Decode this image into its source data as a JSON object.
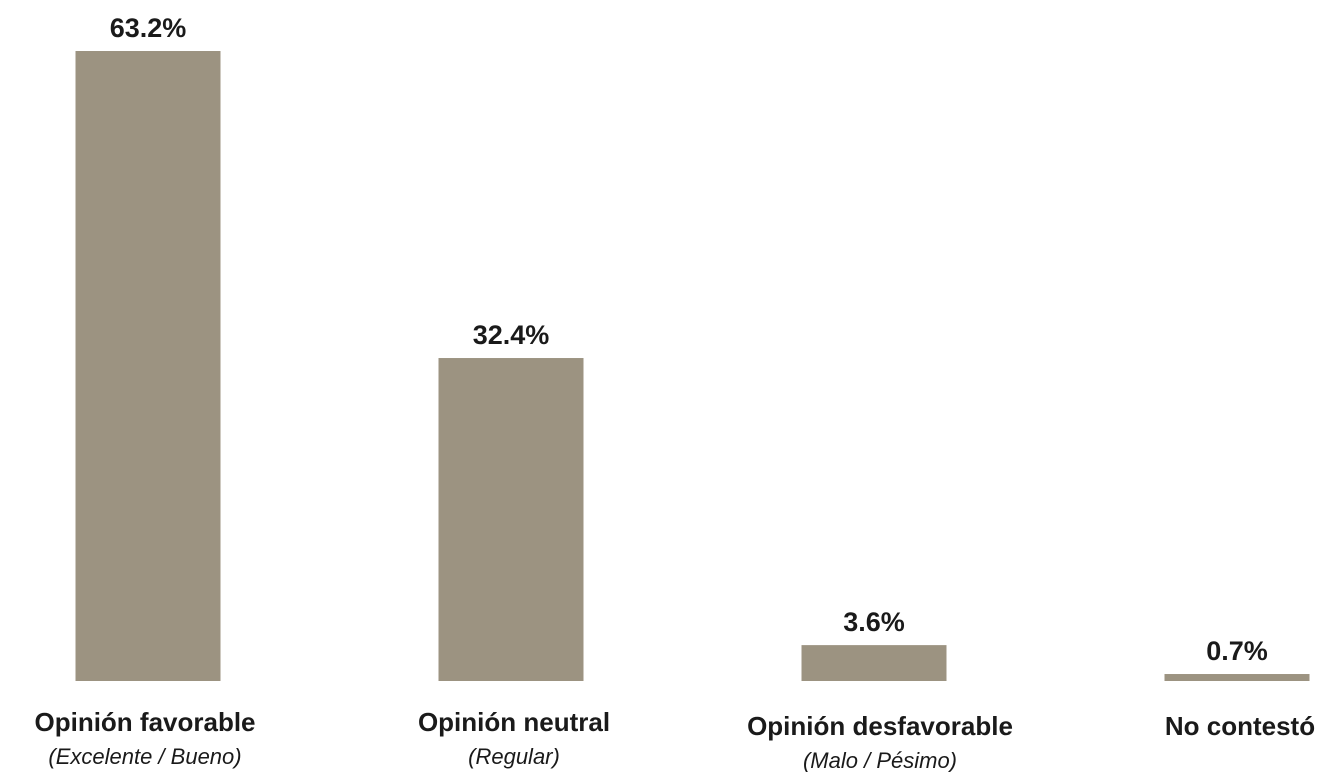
{
  "chart_data": {
    "type": "bar",
    "categories": [
      "Opinión favorable",
      "Opinión neutral",
      "Opinión desfavorable",
      "No contestó"
    ],
    "category_sublabels": [
      "(Excelente / Bueno)",
      "(Regular)",
      "(Malo / Pésimo)",
      ""
    ],
    "values": [
      63.2,
      32.4,
      3.6,
      0.7
    ],
    "value_labels": [
      "63.2%",
      "32.4%",
      "3.6%",
      "0.7%"
    ],
    "title": "",
    "xlabel": "",
    "ylabel": "",
    "ylim": [
      0,
      63.2
    ],
    "grid": false,
    "bar_color": "#9c9381"
  }
}
